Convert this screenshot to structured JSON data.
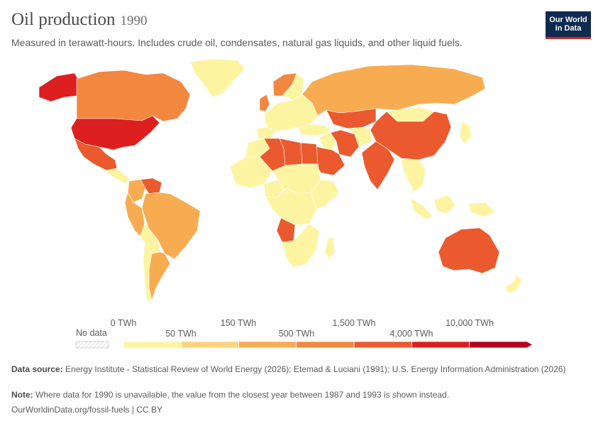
{
  "header": {
    "title": "Oil production",
    "year": "1990",
    "subtitle": "Measured in terawatt-hours. Includes crude oil, condensates, natural gas liquids, and other liquid fuels."
  },
  "logo": {
    "line1": "Our World",
    "line2": "in Data"
  },
  "legend": {
    "no_data_label": "No data",
    "top_labels": [
      "0 TWh",
      "150 TWh",
      "1,500 TWh",
      "10,000 TWh"
    ],
    "bottom_labels": [
      "50 TWh",
      "500 TWh",
      "4,000 TWh"
    ],
    "bins": [
      {
        "range": "0–50 TWh",
        "color": "#fdf4a2"
      },
      {
        "range": "50–150 TWh",
        "color": "#fbd37e"
      },
      {
        "range": "150–500 TWh",
        "color": "#f8ac52"
      },
      {
        "range": "500–1,500 TWh",
        "color": "#f2883f"
      },
      {
        "range": "1,500–4,000 TWh",
        "color": "#ea5a2e"
      },
      {
        "range": "4,000–10,000 TWh",
        "color": "#dd1f1f"
      },
      {
        "range": ">10,000 TWh",
        "color": "#b5001f"
      }
    ]
  },
  "map": {
    "regions": [
      {
        "name": "Canada",
        "color": "#f2883f"
      },
      {
        "name": "United States",
        "color": "#dd1f1f"
      },
      {
        "name": "Mexico",
        "color": "#ea5a2e"
      },
      {
        "name": "Greenland",
        "color": "#fdf4a2"
      },
      {
        "name": "Venezuela",
        "color": "#ea5a2e"
      },
      {
        "name": "Colombia",
        "color": "#f8ac52"
      },
      {
        "name": "Brazil",
        "color": "#f8ac52"
      },
      {
        "name": "Argentina",
        "color": "#f8ac52"
      },
      {
        "name": "Russia",
        "color": "#dd1f1f"
      },
      {
        "name": "Saudi Arabia",
        "color": "#ea5a2e"
      },
      {
        "name": "Iran",
        "color": "#ea5a2e"
      },
      {
        "name": "Iraq",
        "color": "#f2883f"
      },
      {
        "name": "China",
        "color": "#ea5a2e"
      },
      {
        "name": "India",
        "color": "#f8ac52"
      },
      {
        "name": "Indonesia",
        "color": "#f2883f"
      },
      {
        "name": "Australia",
        "color": "#f8ac52"
      },
      {
        "name": "Nigeria",
        "color": "#f2883f"
      },
      {
        "name": "Algeria",
        "color": "#f8ac52"
      },
      {
        "name": "Libya",
        "color": "#f8ac52"
      },
      {
        "name": "Egypt",
        "color": "#f8ac52"
      },
      {
        "name": "Angola",
        "color": "#f8ac52"
      },
      {
        "name": "Norway",
        "color": "#f2883f"
      },
      {
        "name": "United Kingdom",
        "color": "#f2883f"
      },
      {
        "name": "Kazakhstan",
        "color": "#f8ac52"
      }
    ]
  },
  "footer": {
    "source_label": "Data source:",
    "source_text": "Energy Institute - Statistical Review of World Energy (2026); Etemad & Luciani (1991); U.S. Energy Information Administration (2026)",
    "note_label": "Note:",
    "note_text": "Where data for 1990 is unavailable, the value from the closest year between 1987 and 1993 is shown instead.",
    "link_text": "OurWorldinData.org/fossil-fuels | CC BY"
  }
}
